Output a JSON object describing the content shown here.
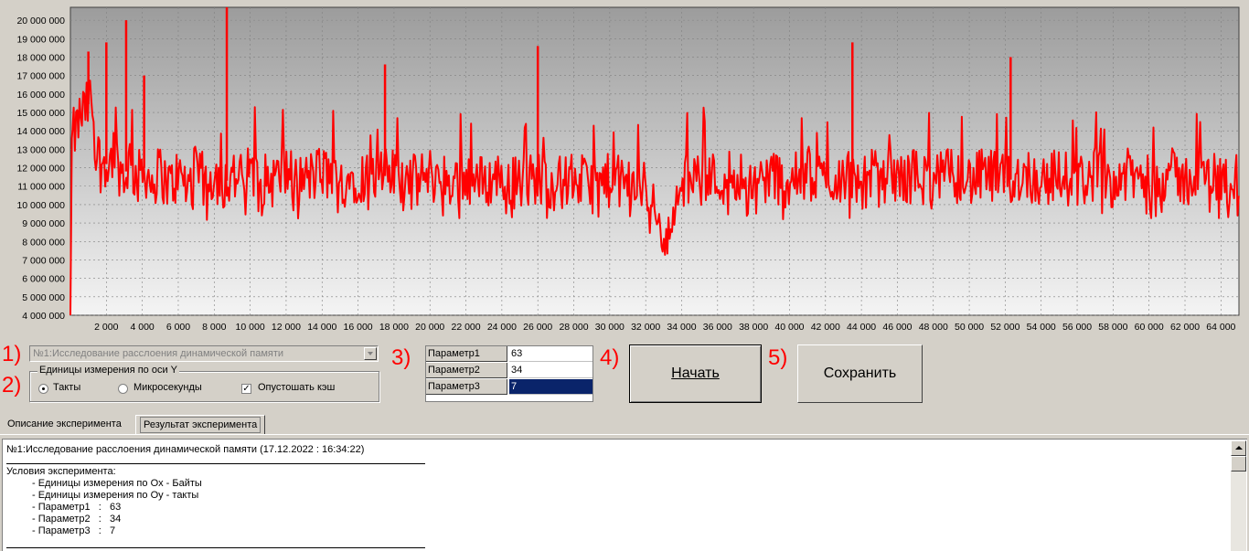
{
  "chart_data": {
    "type": "line",
    "title": "",
    "xlabel": "",
    "ylabel": "",
    "xlim": [
      0,
      65000
    ],
    "ylim": [
      4000000,
      20700000
    ],
    "grid": true,
    "line_color": "#ff0000",
    "x_ticks": [
      "2 000",
      "4 000",
      "6 000",
      "8 000",
      "10 000",
      "12 000",
      "14 000",
      "16 000",
      "18 000",
      "20 000",
      "22 000",
      "24 000",
      "26 000",
      "28 000",
      "30 000",
      "32 000",
      "34 000",
      "36 000",
      "38 000",
      "40 000",
      "42 000",
      "44 000",
      "46 000",
      "48 000",
      "50 000",
      "52 000",
      "54 000",
      "56 000",
      "58 000",
      "60 000",
      "62 000",
      "64 000"
    ],
    "y_ticks": [
      "4 000 000",
      "5 000 000",
      "6 000 000",
      "7 000 000",
      "8 000 000",
      "9 000 000",
      "10 000 000",
      "11 000 000",
      "12 000 000",
      "13 000 000",
      "14 000 000",
      "15 000 000",
      "16 000 000",
      "17 000 000",
      "18 000 000",
      "19 000 000",
      "20 000 000"
    ],
    "series": [
      {
        "points": [
          [
            0,
            4000000
          ],
          [
            100,
            13600000
          ],
          [
            300,
            14000000
          ],
          [
            600,
            14900000
          ],
          [
            900,
            15200000
          ],
          [
            1100,
            15700000
          ],
          [
            1300,
            14800000
          ],
          [
            1500,
            13000000
          ],
          [
            1700,
            12000000
          ],
          [
            1900,
            12600000
          ],
          [
            2100,
            11800000
          ],
          [
            2400,
            13000000
          ],
          [
            2700,
            12000000
          ],
          [
            3000,
            11500000
          ],
          [
            3300,
            12400000
          ],
          [
            3700,
            11300000
          ],
          [
            4100,
            12000000
          ],
          [
            4500,
            11200000
          ],
          [
            5000,
            11800000
          ],
          [
            5500,
            11000000
          ],
          [
            6000,
            11600000
          ],
          [
            6500,
            11000000
          ],
          [
            7000,
            11800000
          ],
          [
            7500,
            11200000
          ],
          [
            8000,
            11700000
          ],
          [
            8500,
            11100000
          ],
          [
            9000,
            11600000
          ],
          [
            9500,
            11300000
          ],
          [
            10000,
            11800000
          ],
          [
            11000,
            11200000
          ],
          [
            12000,
            11700000
          ],
          [
            13000,
            11300000
          ],
          [
            14000,
            11800000
          ],
          [
            15000,
            11200000
          ],
          [
            16000,
            11600000
          ],
          [
            17000,
            11400000
          ],
          [
            18000,
            11700000
          ],
          [
            19000,
            11200000
          ],
          [
            20000,
            11600000
          ],
          [
            21000,
            11300000
          ],
          [
            22000,
            11500000
          ],
          [
            23000,
            11200000
          ],
          [
            24000,
            11600000
          ],
          [
            25000,
            11100000
          ],
          [
            26000,
            11500000
          ],
          [
            27000,
            11100000
          ],
          [
            28000,
            11400000
          ],
          [
            29000,
            11000000
          ],
          [
            30000,
            11300000
          ],
          [
            31000,
            11100000
          ],
          [
            32000,
            10900000
          ],
          [
            32500,
            10300000
          ],
          [
            32800,
            8500000
          ],
          [
            33000,
            7400000
          ],
          [
            33200,
            8200000
          ],
          [
            33500,
            9500000
          ],
          [
            33800,
            10400000
          ],
          [
            34200,
            11300000
          ],
          [
            35000,
            11800000
          ],
          [
            36000,
            11300000
          ],
          [
            37000,
            11700000
          ],
          [
            38000,
            11200000
          ],
          [
            39000,
            11600000
          ],
          [
            40000,
            11200000
          ],
          [
            41000,
            11700000
          ],
          [
            42000,
            11300000
          ],
          [
            43000,
            11600000
          ],
          [
            44000,
            11200000
          ],
          [
            45000,
            11700000
          ],
          [
            46000,
            11300000
          ],
          [
            47000,
            11600000
          ],
          [
            48000,
            11200000
          ],
          [
            49000,
            11700000
          ],
          [
            50000,
            11300000
          ],
          [
            51000,
            11600000
          ],
          [
            52000,
            11200000
          ],
          [
            53000,
            11700000
          ],
          [
            54000,
            11300000
          ],
          [
            55000,
            11600000
          ],
          [
            56000,
            11200000
          ],
          [
            57000,
            11700000
          ],
          [
            58000,
            11300000
          ],
          [
            59000,
            11600000
          ],
          [
            60000,
            11200000
          ],
          [
            61000,
            11700000
          ],
          [
            62000,
            11300000
          ],
          [
            63000,
            11600000
          ],
          [
            64000,
            11400000
          ],
          [
            65000,
            11500000
          ]
        ],
        "spikes": [
          [
            1000,
            18300000
          ],
          [
            2000,
            18800000
          ],
          [
            3100,
            20000000
          ],
          [
            4100,
            17000000
          ],
          [
            8700,
            20700000
          ],
          [
            17500,
            17600000
          ],
          [
            26000,
            18600000
          ],
          [
            43500,
            18800000
          ],
          [
            52300,
            18000000
          ]
        ]
      }
    ]
  },
  "controls": {
    "annotations": [
      "1)",
      "2)",
      "3)",
      "4)",
      "5)"
    ],
    "experiment_select": "№1:Исследование расслоения динамической памяти",
    "units_group_title": "Единицы измерения по оси Y",
    "units_options": [
      "Такты",
      "Микросекунды"
    ],
    "units_selected": 0,
    "clear_cache_label": "Опустошать кэш",
    "clear_cache_checked": true,
    "params": [
      {
        "name": "Параметр1",
        "value": "63"
      },
      {
        "name": "Параметр2",
        "value": "34"
      },
      {
        "name": "Параметр3",
        "value": "7"
      }
    ],
    "start_label": "Начать",
    "save_label": "Сохранить"
  },
  "tabs": [
    "Описание эксперимента",
    "Результат эксперимента"
  ],
  "result": {
    "header": "№1:Исследование расслоения динамической памяти (17.12.2022 : 16:34:22)",
    "conditions_title": "Условия эксперимента:",
    "lines": [
      "- Единицы измерения по Ox - Байты",
      "- Единицы измерения по Oy - такты",
      "- Параметр1   :   63",
      "- Параметр2   :   34",
      "- Параметр3   :   7"
    ]
  }
}
